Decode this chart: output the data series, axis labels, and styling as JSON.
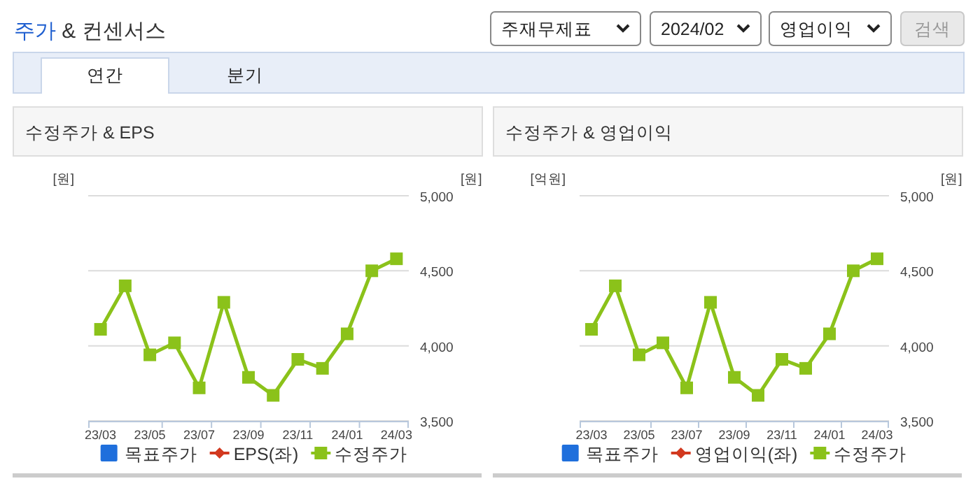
{
  "chart_data": [
    {
      "type": "other",
      "title": "주가 & 컨센서스",
      "annotations": [
        "주재무제표",
        "2024/02",
        "영업이익",
        "검색",
        "연간",
        "분기"
      ]
    },
    {
      "type": "line",
      "title": "수정주가 & EPS",
      "ylabel": "[원]",
      "y2label": "[원]",
      "categories": [
        "23/03",
        null,
        "23/05",
        null,
        "23/07",
        null,
        "23/09",
        null,
        "23/11",
        null,
        "24/01",
        null,
        "24/03"
      ],
      "series": [
        {
          "name": "목표주가",
          "type": "bar",
          "color": "#1f6fdc",
          "values": [
            null,
            null,
            null,
            null,
            null,
            null,
            null,
            null,
            null,
            null,
            null,
            null,
            null
          ]
        },
        {
          "name": "EPS(좌)",
          "type": "line",
          "color": "#d2391f",
          "marker": "diamond",
          "values": [
            null,
            null,
            null,
            null,
            null,
            null,
            null,
            null,
            null,
            null,
            null,
            null,
            null
          ]
        },
        {
          "name": "수정주가",
          "type": "line",
          "axis": "y2",
          "color": "#8bc21a",
          "marker": "square",
          "values": [
            4110,
            4400,
            3940,
            4020,
            3720,
            4290,
            3790,
            3670,
            3910,
            3850,
            4080,
            4500,
            4580
          ]
        }
      ],
      "y2lim": [
        3500,
        5000
      ],
      "y2ticks": [
        {
          "value": 3500,
          "label": "3,500"
        },
        {
          "value": 4000,
          "label": "4,000"
        },
        {
          "value": 4500,
          "label": "4,500"
        },
        {
          "value": 5000,
          "label": "5,000"
        }
      ],
      "grid": "y",
      "legend": "bottom"
    },
    {
      "type": "line",
      "title": "수정주가 & 영업이익",
      "ylabel": "[억원]",
      "y2label": "[원]",
      "categories": [
        "23/03",
        null,
        "23/05",
        null,
        "23/07",
        null,
        "23/09",
        null,
        "23/11",
        null,
        "24/01",
        null,
        "24/03"
      ],
      "series": [
        {
          "name": "목표주가",
          "type": "bar",
          "color": "#1f6fdc",
          "values": [
            null,
            null,
            null,
            null,
            null,
            null,
            null,
            null,
            null,
            null,
            null,
            null,
            null
          ]
        },
        {
          "name": "영업이익(좌)",
          "type": "line",
          "color": "#d2391f",
          "marker": "diamond",
          "values": [
            null,
            null,
            null,
            null,
            null,
            null,
            null,
            null,
            null,
            null,
            null,
            null,
            null
          ]
        },
        {
          "name": "수정주가",
          "type": "line",
          "axis": "y2",
          "color": "#8bc21a",
          "marker": "square",
          "values": [
            4110,
            4400,
            3940,
            4020,
            3720,
            4290,
            3790,
            3670,
            3910,
            3850,
            4080,
            4500,
            4580
          ]
        }
      ],
      "y2lim": [
        3500,
        5000
      ],
      "y2ticks": [
        {
          "value": 3500,
          "label": "3,500"
        },
        {
          "value": 4000,
          "label": "4,000"
        },
        {
          "value": 4500,
          "label": "4,500"
        },
        {
          "value": 5000,
          "label": "5,000"
        }
      ],
      "grid": "y",
      "legend": "bottom"
    }
  ]
}
